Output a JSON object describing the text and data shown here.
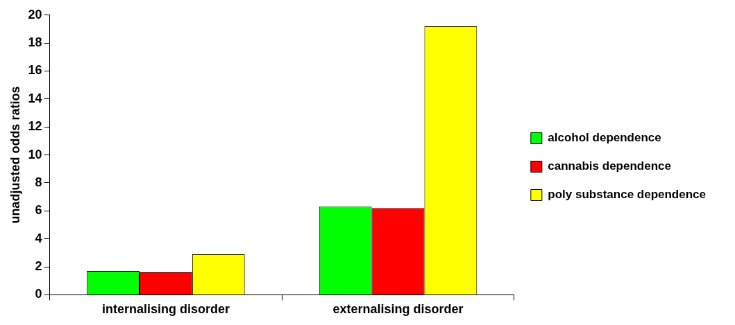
{
  "chart_data": {
    "type": "bar",
    "ylabel": "unadjusted odds ratios",
    "categories": [
      "internalising disorder",
      "externalising disorder"
    ],
    "series": [
      {
        "name": "alcohol dependence",
        "color": "#00ff00",
        "values": [
          1.7,
          6.3
        ]
      },
      {
        "name": "cannabis dependence",
        "color": "#ff0000",
        "values": [
          1.6,
          6.2
        ]
      },
      {
        "name": "poly substance dependence",
        "color": "#ffff00",
        "values": [
          2.9,
          19.2
        ]
      }
    ],
    "ylim": [
      0,
      20
    ],
    "yticks": [
      0,
      2,
      4,
      6,
      8,
      10,
      12,
      14,
      16,
      18,
      20
    ],
    "grid": false,
    "legend": "right"
  }
}
